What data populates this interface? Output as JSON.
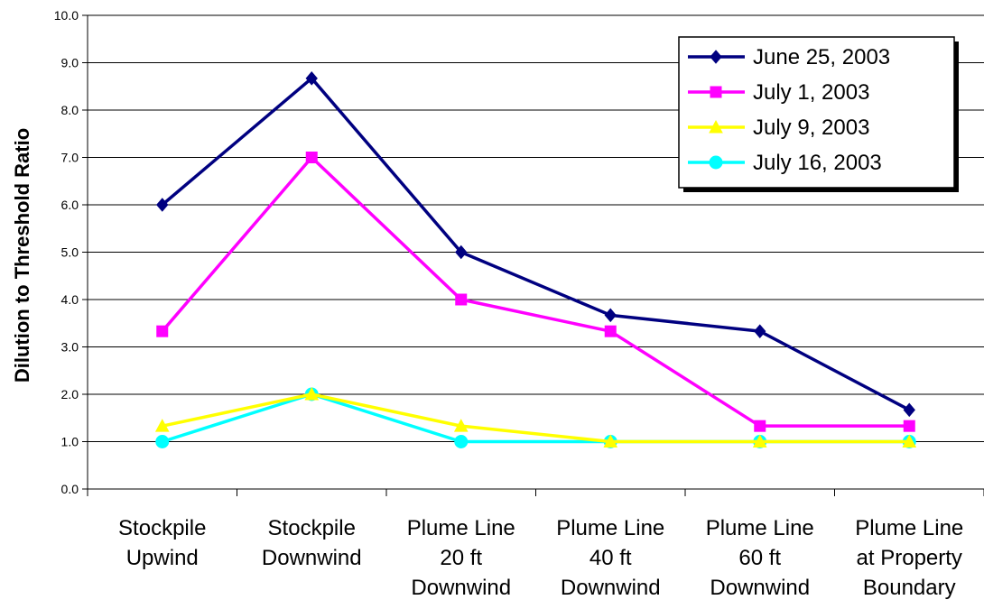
{
  "chart_data": {
    "type": "line",
    "ylabel": "Dilution to Threshold Ratio",
    "categories": [
      [
        "Stockpile",
        "Upwind"
      ],
      [
        "Stockpile",
        "Downwind"
      ],
      [
        "Plume Line",
        "20 ft",
        "Downwind"
      ],
      [
        "Plume Line",
        "40 ft",
        "Downwind"
      ],
      [
        "Plume Line",
        "60 ft",
        "Downwind"
      ],
      [
        "Plume Line",
        "at Property",
        "Boundary"
      ]
    ],
    "ylim": [
      0,
      10
    ],
    "yticks": [
      "0.0",
      "1.0",
      "2.0",
      "3.0",
      "4.0",
      "5.0",
      "6.0",
      "7.0",
      "8.0",
      "9.0",
      "10.0"
    ],
    "grid": true,
    "legend_position": "top-right",
    "series": [
      {
        "name": "June 25, 2003",
        "color": "#000080",
        "marker": "diamond",
        "values": [
          6.0,
          8.67,
          5.0,
          3.67,
          3.33,
          1.67
        ]
      },
      {
        "name": "July 1, 2003",
        "color": "#FF00FF",
        "marker": "square",
        "values": [
          3.33,
          7.0,
          4.0,
          3.33,
          1.33,
          1.33
        ]
      },
      {
        "name": "July 9, 2003",
        "color": "#FFFF00",
        "marker": "triangle",
        "values": [
          1.33,
          2.0,
          1.33,
          1.0,
          1.0,
          1.0
        ]
      },
      {
        "name": "July 16, 2003",
        "color": "#00FFFF",
        "marker": "circle",
        "values": [
          1.0,
          2.0,
          1.0,
          1.0,
          1.0,
          1.0
        ]
      }
    ]
  }
}
